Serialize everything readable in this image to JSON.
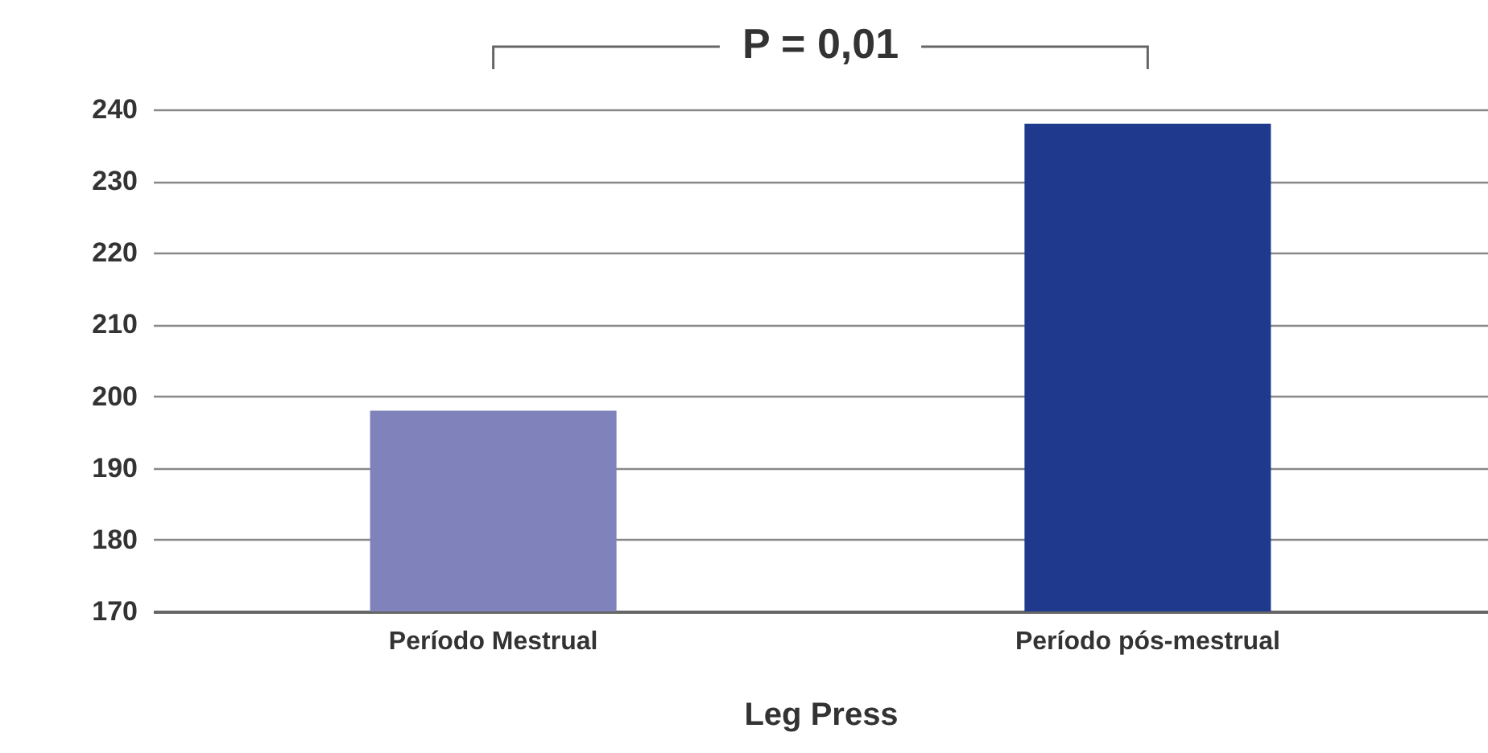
{
  "chart_data": {
    "type": "bar",
    "xlabel": "Leg Press",
    "annotations": [
      "P = 0,01"
    ],
    "categories": [
      "Período Mestrual",
      "Período pós-mestrual"
    ],
    "values": [
      198,
      238
    ],
    "colors": [
      "#8083bb",
      "#1f3a8c"
    ],
    "ylim": [
      170,
      240
    ],
    "yticks": [
      170,
      180,
      190,
      200,
      210,
      220,
      230,
      240
    ],
    "grid": "y"
  }
}
